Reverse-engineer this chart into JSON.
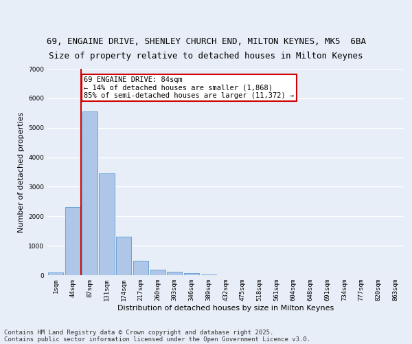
{
  "title_line1": "69, ENGAINE DRIVE, SHENLEY CHURCH END, MILTON KEYNES, MK5  6BA",
  "title_line2": "Size of property relative to detached houses in Milton Keynes",
  "xlabel": "Distribution of detached houses by size in Milton Keynes",
  "ylabel": "Number of detached properties",
  "bar_labels": [
    "1sqm",
    "44sqm",
    "87sqm",
    "131sqm",
    "174sqm",
    "217sqm",
    "260sqm",
    "303sqm",
    "346sqm",
    "389sqm",
    "432sqm",
    "475sqm",
    "518sqm",
    "561sqm",
    "604sqm",
    "648sqm",
    "691sqm",
    "734sqm",
    "777sqm",
    "820sqm",
    "863sqm"
  ],
  "bar_values": [
    100,
    2300,
    5560,
    3450,
    1310,
    500,
    190,
    125,
    70,
    20,
    0,
    0,
    0,
    0,
    0,
    0,
    0,
    0,
    0,
    0,
    0
  ],
  "bar_color": "#aec6e8",
  "bar_edge_color": "#5b9bd5",
  "vline_x_idx": 2,
  "vline_color": "#cc0000",
  "annotation_text": "69 ENGAINE DRIVE: 84sqm\n← 14% of detached houses are smaller (1,868)\n85% of semi-detached houses are larger (11,372) →",
  "annotation_box_color": "#ffffff",
  "annotation_box_edge": "#cc0000",
  "ylim": [
    0,
    7000
  ],
  "yticks": [
    0,
    1000,
    2000,
    3000,
    4000,
    5000,
    6000,
    7000
  ],
  "background_color": "#e8eef7",
  "grid_color": "#ffffff",
  "footer_line1": "Contains HM Land Registry data © Crown copyright and database right 2025.",
  "footer_line2": "Contains public sector information licensed under the Open Government Licence v3.0.",
  "title1_fontsize": 9,
  "title2_fontsize": 9,
  "axis_label_fontsize": 8,
  "tick_fontsize": 6.5,
  "annotation_fontsize": 7.5,
  "footer_fontsize": 6.5
}
